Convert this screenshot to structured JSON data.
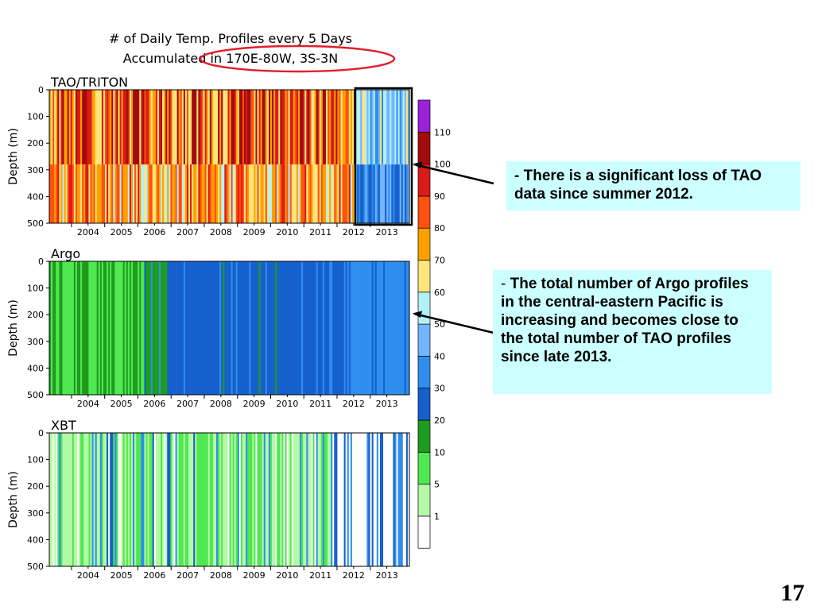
{
  "figure": {
    "title_line1": "# of Daily Temp. Profiles every 5 Days",
    "title_line2": "Accumulated in 170E-80W, 3S-3N"
  },
  "colors": {
    "title_ellipse": "#e0202a",
    "highlight_box": "#000000",
    "arrows": "#000000",
    "callout_bg": "#ccffff"
  },
  "chart_data": [
    {
      "type": "heatmap",
      "name": "TAO/TRITON",
      "ylabel": "Depth (m)",
      "y_ticks": [
        0,
        100,
        200,
        300,
        400,
        500
      ],
      "ylim": [
        500,
        0
      ],
      "x_ticks": [
        "2004",
        "2005",
        "2006",
        "2007",
        "2008",
        "2009",
        "2010",
        "2011",
        "2012",
        "2013"
      ],
      "xlim": [
        2003.33,
        2014.18
      ],
      "highlight_period": [
        2012.55,
        2014.18
      ],
      "periods": [
        {
          "from": 2003.33,
          "to": 2012.55,
          "upper_0_280m": "80-110 (reds, dark red)",
          "lower_280_500m": "60-100 (orange, yellow, red)"
        },
        {
          "from": 2012.55,
          "to": 2014.18,
          "upper_0_280m": "30-70 (light blue, yellow)",
          "lower_280_500m": "20-50 (blues)"
        }
      ]
    },
    {
      "type": "heatmap",
      "name": "Argo",
      "ylabel": "Depth (m)",
      "y_ticks": [
        0,
        100,
        200,
        300,
        400,
        500
      ],
      "ylim": [
        500,
        0
      ],
      "x_ticks": [
        "2004",
        "2005",
        "2006",
        "2007",
        "2008",
        "2009",
        "2010",
        "2011",
        "2012",
        "2013"
      ],
      "xlim": [
        2003.33,
        2014.18
      ],
      "periods": [
        {
          "from": 2003.33,
          "to": 2006.2,
          "level": "5-20 (greens)"
        },
        {
          "from": 2006.2,
          "to": 2012.4,
          "level": "20-40 (blues)"
        },
        {
          "from": 2012.4,
          "to": 2014.18,
          "level": "40-50 (light blue)"
        }
      ]
    },
    {
      "type": "heatmap",
      "name": "XBT",
      "ylabel": "Depth (m)",
      "y_ticks": [
        0,
        100,
        200,
        300,
        400,
        500
      ],
      "ylim": [
        500,
        0
      ],
      "x_ticks": [
        "2004",
        "2005",
        "2006",
        "2007",
        "2008",
        "2009",
        "2010",
        "2011",
        "2012",
        "2013"
      ],
      "xlim": [
        2003.33,
        2014.18
      ],
      "periods": [
        {
          "from": 2003.33,
          "to": 2014.18,
          "level": "1-20 (sparse greens and blues, white gaps)"
        }
      ]
    }
  ],
  "colorbar": {
    "labels": [
      "1",
      "5",
      "10",
      "20",
      "30",
      "40",
      "50",
      "60",
      "70",
      "80",
      "90",
      "100",
      "110"
    ],
    "colors": [
      "#ffffff",
      "#b4f9a6",
      "#50e850",
      "#1e9c1e",
      "#1560cd",
      "#2e8ef0",
      "#72b6ff",
      "#b4f0fa",
      "#ffe57a",
      "#ffa000",
      "#ff5010",
      "#dd1a1a",
      "#a20c0c",
      "#9b22d6"
    ]
  },
  "callouts": {
    "tao_text": "- There is a significant loss of TAO data since summer 2012.",
    "argo_dash": "- ",
    "argo_text": "The total number of Argo profiles in the central-eastern Pacific is increasing and becomes close to the total number of TAO profiles since late 2013."
  },
  "slide_number": "17"
}
